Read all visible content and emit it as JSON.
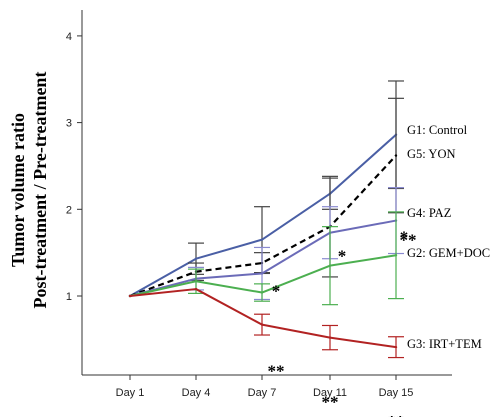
{
  "chart_data": {
    "type": "line",
    "title": "",
    "xlabel": "",
    "ylabel_lines": [
      "Tumor volume ratio",
      "Post-treatment / Pre-treatment"
    ],
    "categories": [
      "Day 1",
      "Day 4",
      "Day 7",
      "Day 11",
      "Day 15"
    ],
    "y_ticks": [
      "1",
      "2",
      "3",
      "4"
    ],
    "ylim": [
      0.1,
      4.4
    ],
    "grid": false,
    "legend_placement": "right, labels at line ends",
    "series": [
      {
        "name": "G1: Control",
        "color": "#4a5fa5",
        "dashed": false,
        "values": [
          1.0,
          1.43,
          1.65,
          2.18,
          2.86
        ],
        "errors": [
          0.0,
          0.18,
          0.38,
          0.18,
          0.62
        ],
        "error_color": "#444444",
        "stars": [],
        "label_at": 2.86
      },
      {
        "name": "G5: YON",
        "color": "#000000",
        "dashed": true,
        "values": [
          1.0,
          1.28,
          1.38,
          1.8,
          2.62
        ],
        "errors": [
          0.0,
          0.1,
          0.12,
          0.58,
          0.66
        ],
        "error_color": "#444444",
        "stars": [],
        "label_at": 2.62
      },
      {
        "name": "G4: PAZ",
        "color": "#6b6bb8",
        "dashed": false,
        "values": [
          1.0,
          1.2,
          1.26,
          1.73,
          1.87
        ],
        "errors": [
          0.0,
          0.13,
          0.3,
          0.3,
          0.38
        ],
        "error_color": "#8a8ad0",
        "stars": [
          "",
          "",
          "",
          "",
          "*"
        ],
        "label_at": 1.97
      },
      {
        "name": "G2: GEM+DOC",
        "color": "#4caf50",
        "dashed": false,
        "values": [
          1.0,
          1.17,
          1.04,
          1.35,
          1.47
        ],
        "errors": [
          0.0,
          0.14,
          0.1,
          0.45,
          0.5
        ],
        "error_color": "#4caf50",
        "stars": [
          "",
          "",
          "*",
          "*",
          "**"
        ],
        "label_at": 1.47
      },
      {
        "name": "G3: IRT+TEM",
        "color": "#b22222",
        "dashed": false,
        "values": [
          1.0,
          1.08,
          0.67,
          0.52,
          0.41
        ],
        "errors": [
          0.0,
          0.0,
          0.12,
          0.14,
          0.12
        ],
        "error_color": "#b22222",
        "stars": [
          "",
          "",
          "**",
          "**",
          "**"
        ],
        "label_at": 0.41
      }
    ]
  }
}
